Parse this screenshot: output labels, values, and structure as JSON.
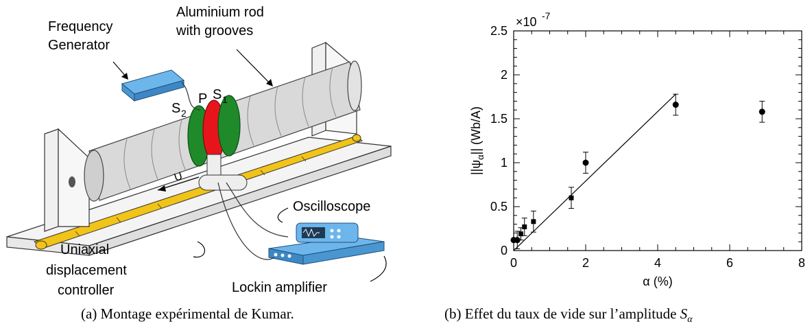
{
  "panel_a": {
    "labels": {
      "frequency_generator_line1": "Frequency",
      "frequency_generator_line2": "Generator",
      "rod_line1": "Aluminium rod",
      "rod_line2": "with grooves",
      "s2": "S",
      "s2_sub": "2",
      "p": "P",
      "s1": "S",
      "s1_sub": "1",
      "u": "U",
      "oscilloscope": "Oscilloscope",
      "uniaxial_line1": "Uniaxial",
      "uniaxial_line2": "displacement",
      "uniaxial_line3": "controller",
      "lockin": "Lockin amplifier"
    },
    "colors": {
      "rod": "#d9d9d9",
      "coil_green": "#1e8a2a",
      "coil_red": "#e8141c",
      "track": "#f2c318",
      "device": "#5ba8e0"
    },
    "caption": "(a) Montage expérimental de Kumar."
  },
  "panel_b": {
    "caption_prefix": "(b) Effet du taux de vide sur l’amplitude ",
    "caption_symbol": "S",
    "caption_sub": "α",
    "chart_data": {
      "type": "scatter",
      "xlabel": "α (%)",
      "ylabel_prefix": "||ψ",
      "ylabel_sub": "α",
      "ylabel_suffix": "|| (Wb/A)",
      "exponent_label": "×10",
      "exponent_power": "-7",
      "xlim": [
        0,
        8
      ],
      "ylim": [
        0,
        2.5
      ],
      "xticks": [
        "0",
        "2",
        "4",
        "6",
        "8"
      ],
      "yticks": [
        "0",
        "0.5",
        "1",
        "1.5",
        "2",
        "2.5"
      ],
      "series": [
        {
          "points": [
            {
              "x": 0.0,
              "y": 0.12,
              "err": 0.0,
              "marker": "circle"
            },
            {
              "x": 0.1,
              "y": 0.12,
              "err": 0.1,
              "marker": "circle"
            },
            {
              "x": 0.2,
              "y": 0.19,
              "err": 0.07,
              "marker": "square"
            },
            {
              "x": 0.3,
              "y": 0.27,
              "err": 0.1,
              "marker": "square"
            },
            {
              "x": 0.55,
              "y": 0.33,
              "err": 0.12,
              "marker": "square"
            },
            {
              "x": 1.6,
              "y": 0.6,
              "err": 0.12,
              "marker": "square"
            },
            {
              "x": 2.0,
              "y": 1.0,
              "err": 0.12,
              "marker": "circle"
            },
            {
              "x": 4.5,
              "y": 1.66,
              "err": 0.12,
              "marker": "circle"
            },
            {
              "x": 6.9,
              "y": 1.58,
              "err": 0.12,
              "marker": "circle"
            }
          ]
        }
      ],
      "fit_line": [
        [
          0,
          0
        ],
        [
          4.5,
          1.78
        ]
      ]
    }
  }
}
